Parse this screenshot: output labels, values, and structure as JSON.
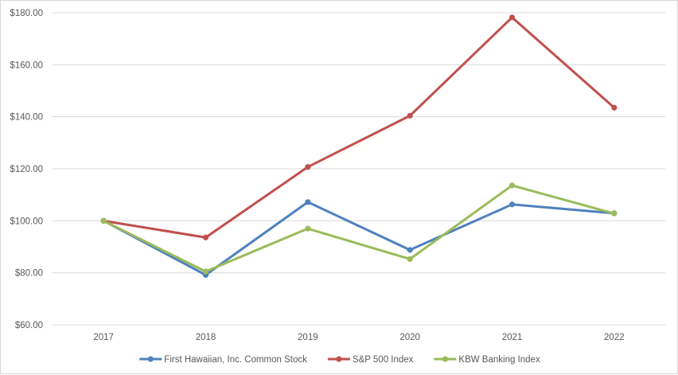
{
  "chart_data": {
    "type": "line",
    "title": "",
    "xlabel": "",
    "ylabel": "",
    "categories": [
      "2017",
      "2018",
      "2019",
      "2020",
      "2021",
      "2022"
    ],
    "ylim": [
      60,
      180
    ],
    "yticks": [
      60,
      80,
      100,
      120,
      140,
      160,
      180
    ],
    "ytick_labels": [
      "$60.00",
      "$80.00",
      "$100.00",
      "$120.00",
      "$140.00",
      "$160.00",
      "$180.00"
    ],
    "grid": "horizontal",
    "legend_position": "bottom",
    "series": [
      {
        "name": "First Hawaiian, Inc. Common Stock",
        "color": "#4f81bd",
        "values": [
          100.0,
          79.2,
          107.2,
          88.8,
          106.3,
          102.9
        ]
      },
      {
        "name": "S&P 500 Index",
        "color": "#c0504d",
        "values": [
          100.0,
          93.6,
          120.7,
          140.4,
          178.2,
          143.5
        ]
      },
      {
        "name": "KBW Banking Index",
        "color": "#9bbb59",
        "values": [
          100.0,
          80.5,
          97.0,
          85.3,
          113.6,
          102.8
        ]
      }
    ]
  }
}
